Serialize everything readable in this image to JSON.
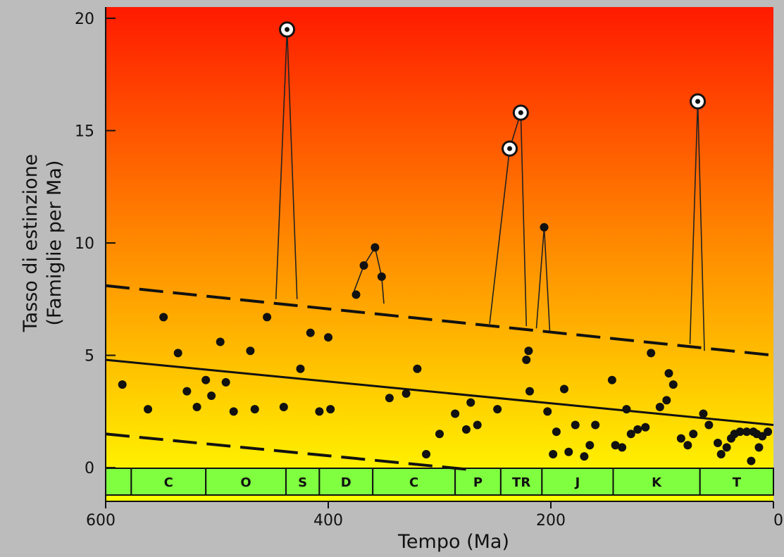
{
  "chart_data": {
    "type": "scatter",
    "xlabel": "Tempo (Ma)",
    "ylabel_line1": "Tasso di estinzione",
    "ylabel_line2": "(Famiglie per Ma)",
    "xlim": [
      600,
      0
    ],
    "ylim": [
      -1.5,
      20.5
    ],
    "x_ticks": [
      600,
      400,
      200,
      0
    ],
    "y_ticks": [
      0,
      5,
      10,
      15,
      20
    ],
    "background": {
      "top": "#ff1a00",
      "mid": "#ff9a00",
      "bottom": "#ffff00"
    },
    "periods": [
      {
        "label": "",
        "from": 600,
        "to": 577
      },
      {
        "label": "C",
        "from": 577,
        "to": 510
      },
      {
        "label": "O",
        "from": 510,
        "to": 438
      },
      {
        "label": "S",
        "from": 438,
        "to": 408
      },
      {
        "label": "D",
        "from": 408,
        "to": 360
      },
      {
        "label": "C",
        "from": 360,
        "to": 286
      },
      {
        "label": "P",
        "from": 286,
        "to": 245
      },
      {
        "label": "TR",
        "from": 245,
        "to": 208
      },
      {
        "label": "J",
        "from": 208,
        "to": 144
      },
      {
        "label": "K",
        "from": 144,
        "to": 66
      },
      {
        "label": "T",
        "from": 66,
        "to": 0
      }
    ],
    "period_color": "#7fff3f",
    "regression": {
      "x": [
        600,
        0
      ],
      "y": [
        4.8,
        1.9
      ]
    },
    "upper_bound": {
      "x": [
        600,
        0
      ],
      "y": [
        8.1,
        5.0
      ]
    },
    "lower_bound": {
      "x": [
        600,
        270
      ],
      "y": [
        1.5,
        -0.1
      ]
    },
    "points": [
      [
        585,
        3.7
      ],
      [
        562,
        2.6
      ],
      [
        548,
        6.7
      ],
      [
        535,
        5.1
      ],
      [
        527,
        3.4
      ],
      [
        518,
        2.7
      ],
      [
        510,
        3.9
      ],
      [
        505,
        3.2
      ],
      [
        497,
        5.6
      ],
      [
        492,
        3.8
      ],
      [
        485,
        2.5
      ],
      [
        470,
        5.2
      ],
      [
        466,
        2.6
      ],
      [
        455,
        6.7
      ],
      [
        440,
        2.7
      ],
      [
        425,
        4.4
      ],
      [
        416,
        6.0
      ],
      [
        408,
        2.5
      ],
      [
        400,
        5.8
      ],
      [
        398,
        2.6
      ],
      [
        375,
        7.7
      ],
      [
        368,
        9.0
      ],
      [
        358,
        9.8
      ],
      [
        352,
        8.5
      ],
      [
        345,
        3.1
      ],
      [
        330,
        3.3
      ],
      [
        320,
        4.4
      ],
      [
        312,
        0.6
      ],
      [
        300,
        1.5
      ],
      [
        286,
        2.4
      ],
      [
        276,
        1.7
      ],
      [
        272,
        2.9
      ],
      [
        266,
        1.9
      ],
      [
        248,
        2.6
      ],
      [
        235,
        14.2
      ],
      [
        225,
        15.8
      ],
      [
        222,
        4.8
      ],
      [
        220,
        5.2
      ],
      [
        219,
        3.4
      ],
      [
        206,
        10.7
      ],
      [
        203,
        2.5
      ],
      [
        198,
        0.6
      ],
      [
        195,
        1.6
      ],
      [
        188,
        3.5
      ],
      [
        184,
        0.7
      ],
      [
        178,
        1.9
      ],
      [
        170,
        0.5
      ],
      [
        165,
        1.0
      ],
      [
        160,
        1.9
      ],
      [
        145,
        3.9
      ],
      [
        142,
        1.0
      ],
      [
        136,
        0.9
      ],
      [
        132,
        2.6
      ],
      [
        128,
        1.5
      ],
      [
        122,
        1.7
      ],
      [
        115,
        1.8
      ],
      [
        110,
        5.1
      ],
      [
        102,
        2.7
      ],
      [
        96,
        3.0
      ],
      [
        94,
        4.2
      ],
      [
        90,
        3.7
      ],
      [
        83,
        1.3
      ],
      [
        77,
        1.0
      ],
      [
        70,
        16.3
      ],
      [
        72,
        1.5
      ],
      [
        63,
        2.4
      ],
      [
        58,
        1.9
      ],
      [
        50,
        1.1
      ],
      [
        47,
        0.6
      ],
      [
        42,
        0.9
      ],
      [
        38,
        1.3
      ],
      [
        35,
        1.5
      ],
      [
        30,
        1.6
      ],
      [
        24,
        1.6
      ],
      [
        20,
        0.3
      ],
      [
        18,
        1.6
      ],
      [
        15,
        1.5
      ],
      [
        13,
        0.9
      ],
      [
        10,
        1.4
      ],
      [
        5,
        1.6
      ]
    ],
    "major_events": [
      [
        437,
        19.5
      ],
      [
        237,
        14.2
      ],
      [
        227,
        15.8
      ],
      [
        68,
        16.3
      ]
    ],
    "peak_traces": [
      [
        [
          447,
          7.5
        ],
        [
          437,
          19.5
        ],
        [
          428,
          7.5
        ]
      ],
      [
        [
          378,
          7.7
        ],
        [
          368,
          9.0
        ],
        [
          358,
          9.8
        ],
        [
          352,
          8.5
        ],
        [
          350,
          7.3
        ]
      ],
      [
        [
          255,
          6.4
        ],
        [
          237,
          14.2
        ],
        [
          227,
          15.8
        ],
        [
          222,
          6.3
        ]
      ],
      [
        [
          213,
          6.2
        ],
        [
          206,
          10.7
        ],
        [
          201,
          6.1
        ]
      ],
      [
        [
          75,
          5.5
        ],
        [
          68,
          16.3
        ],
        [
          62,
          5.2
        ]
      ]
    ]
  }
}
